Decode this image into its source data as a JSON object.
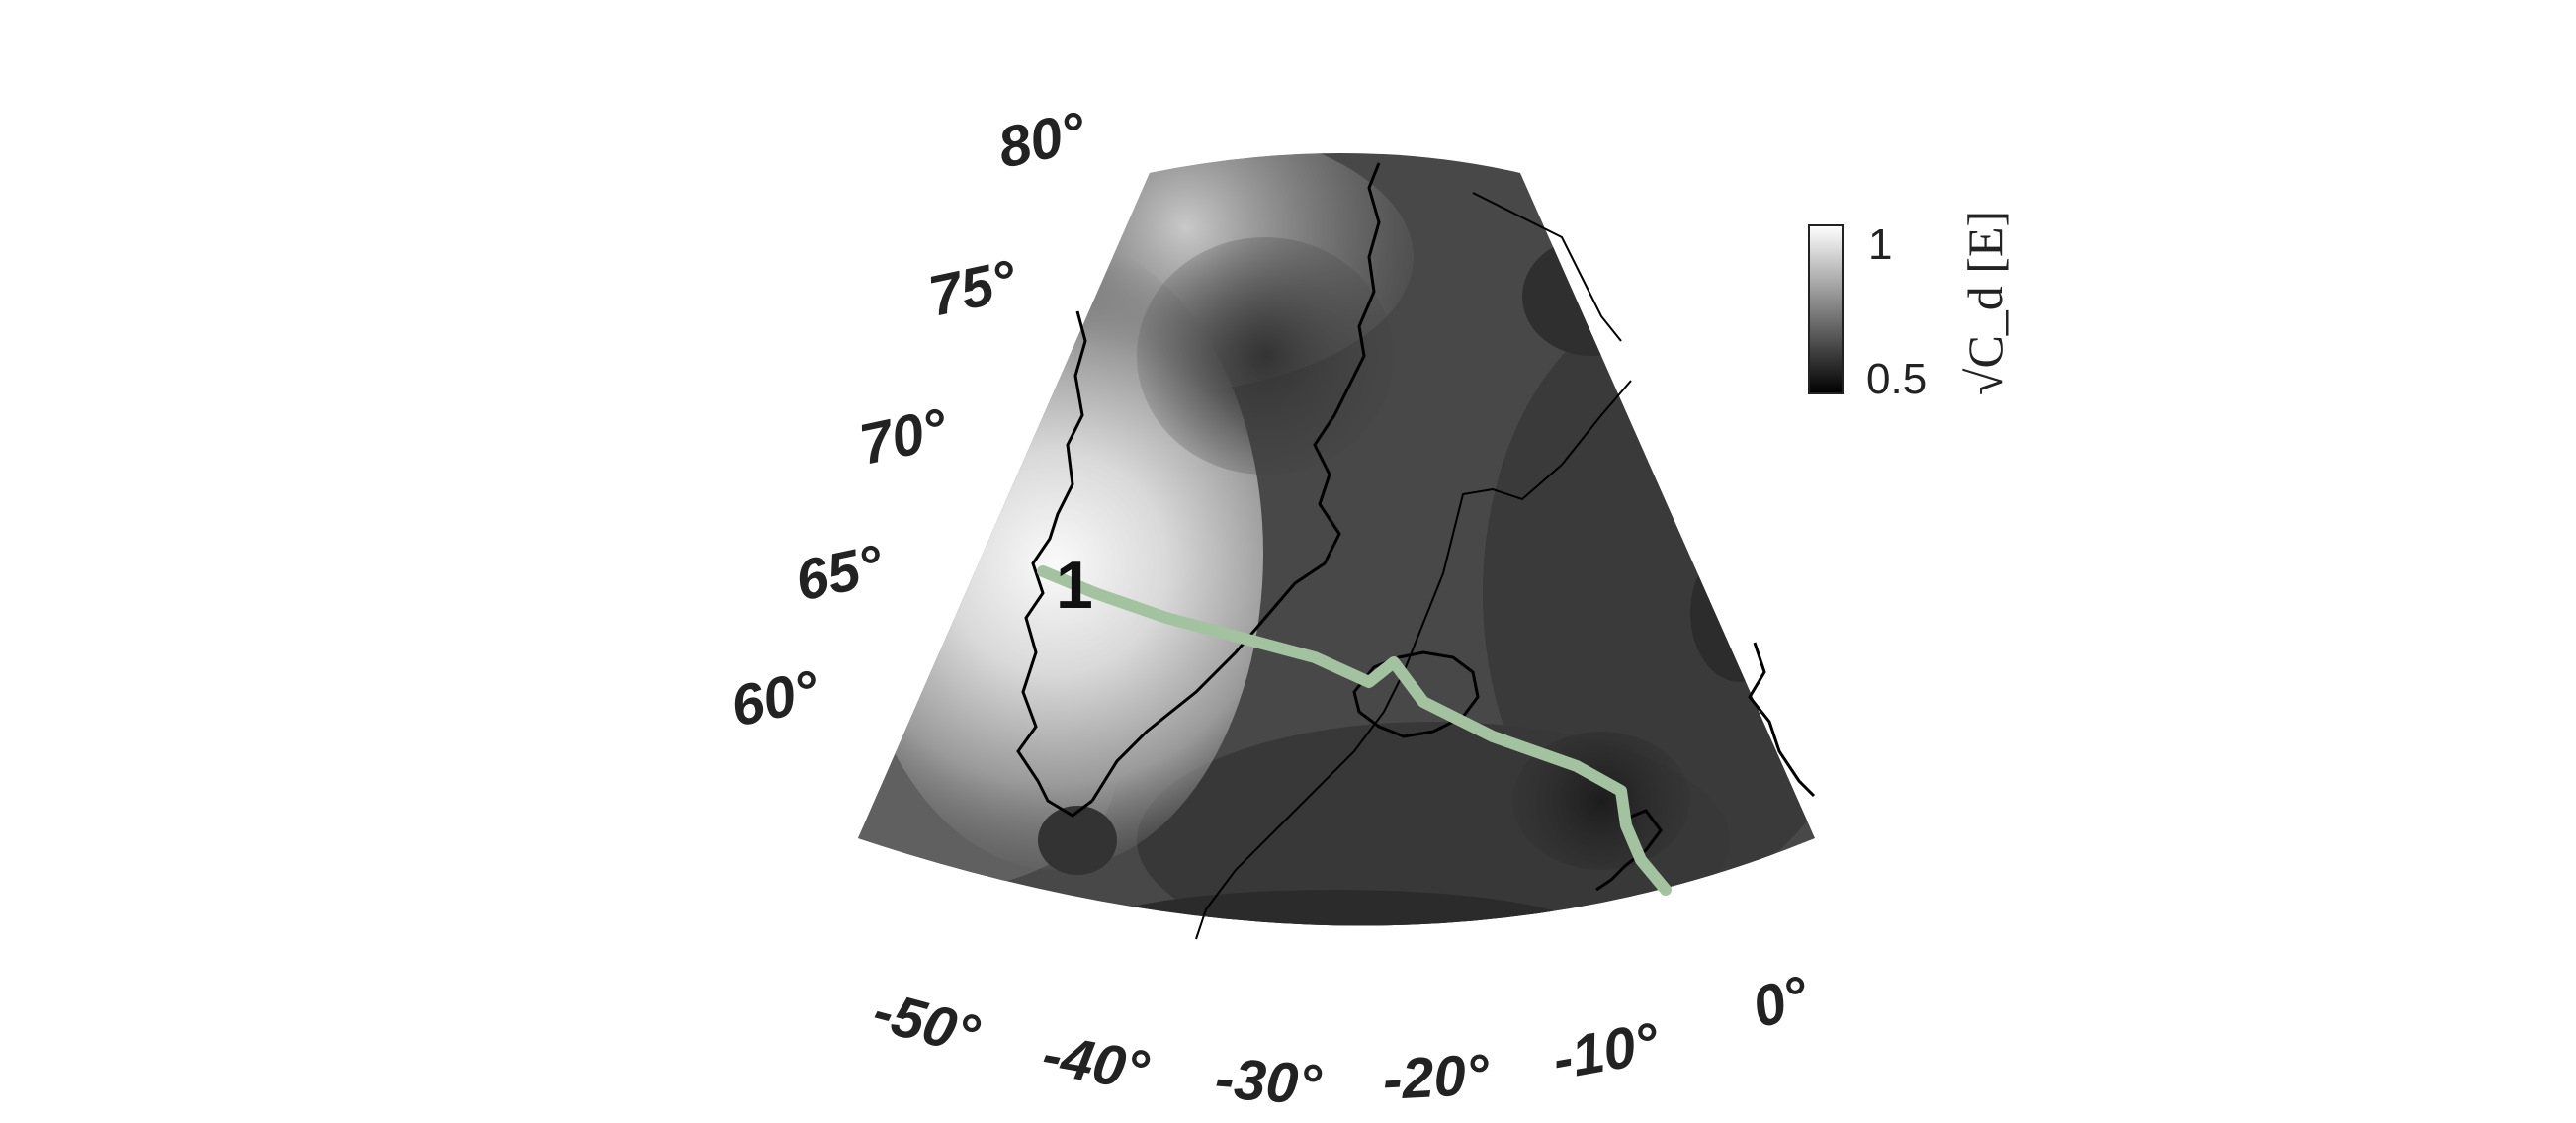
{
  "map": {
    "latitude_labels": [
      "80°",
      "75°",
      "70°",
      "65°",
      "60°"
    ],
    "longitude_labels": [
      "-50°",
      "-40°",
      "-30°",
      "-20°",
      "-10°",
      "0°"
    ],
    "route_label": "1",
    "colors": {
      "route": "#a3c2a0",
      "coast": "#000000",
      "field_dark": "#1a1a1a",
      "field_light": "#f2f2f2"
    }
  },
  "colorbar": {
    "tick_max": "1",
    "tick_min": "0.5",
    "title": "√C_d [E]",
    "levels": 11,
    "min": 0.5,
    "max": 1.0
  }
}
